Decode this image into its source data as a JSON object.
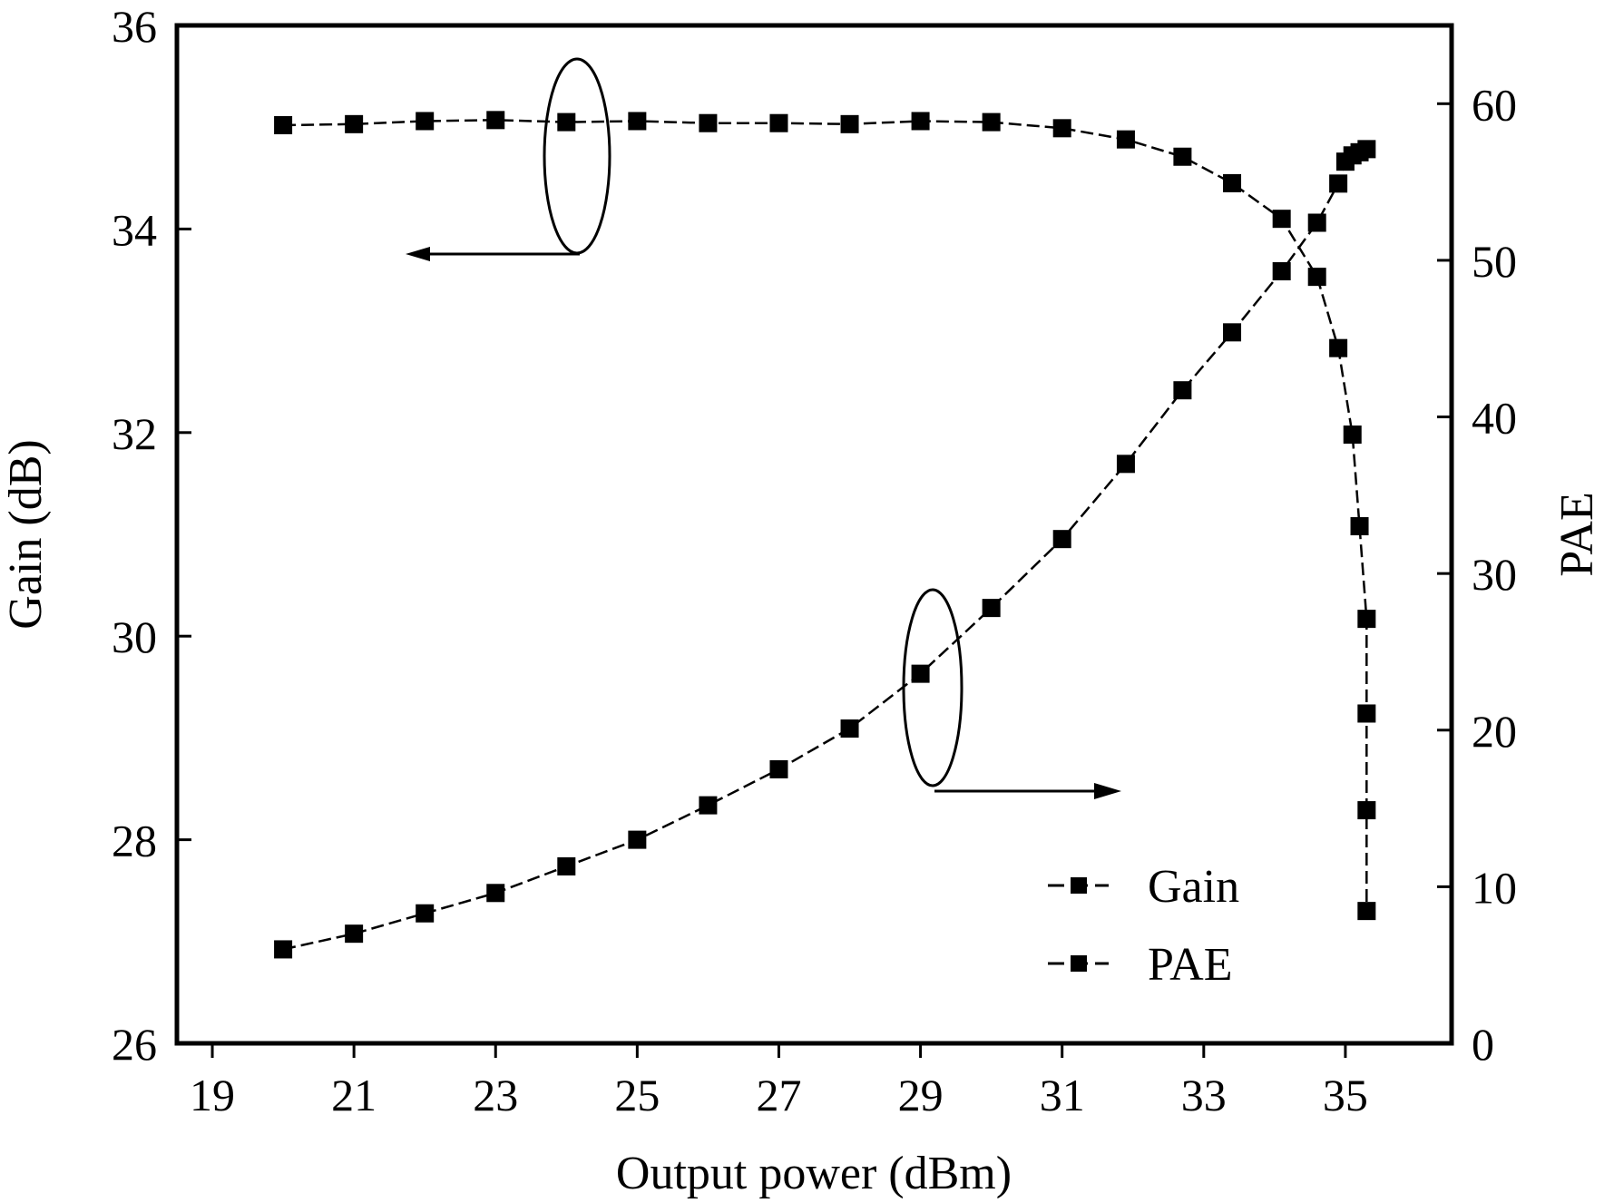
{
  "chart_data": {
    "type": "line",
    "title": "",
    "xlabel": "Output power (dBm)",
    "ylabel": "Gain (dB)",
    "y2label": "PAE",
    "xlim": [
      18.5,
      36.5
    ],
    "ylim": [
      26,
      36
    ],
    "y2lim": [
      0,
      65
    ],
    "xticks": [
      19,
      21,
      23,
      25,
      27,
      29,
      31,
      33,
      35
    ],
    "yticks": [
      26,
      28,
      30,
      32,
      34,
      36
    ],
    "y2ticks": [
      0,
      10,
      20,
      30,
      40,
      50,
      60
    ],
    "grid": false,
    "legend_position": "bottom-right",
    "series": [
      {
        "name": "Gain",
        "axis": "left",
        "color": "#000000",
        "x": [
          20,
          21,
          22,
          23,
          24,
          25,
          26,
          27,
          28,
          29,
          30,
          31,
          31.9,
          32.7,
          33.4,
          34.1,
          34.6,
          34.9,
          35.1,
          35.2,
          35.3,
          35.3,
          35.3,
          35.3
        ],
        "y": [
          35.02,
          35.03,
          35.06,
          35.07,
          35.05,
          35.06,
          35.04,
          35.04,
          35.03,
          35.06,
          35.05,
          34.99,
          34.88,
          34.71,
          34.45,
          34.1,
          33.53,
          32.83,
          31.98,
          31.08,
          30.17,
          29.24,
          28.29,
          27.3
        ]
      },
      {
        "name": "PAE",
        "axis": "right",
        "color": "#000000",
        "x": [
          20,
          21,
          22,
          23,
          24,
          25,
          26,
          27,
          28,
          29,
          30,
          31,
          31.9,
          32.7,
          33.4,
          34.1,
          34.6,
          34.9,
          35.0,
          35.1,
          35.2,
          35.3
        ],
        "y": [
          6,
          7,
          8.3,
          9.6,
          11.3,
          13,
          15.2,
          17.5,
          20.1,
          23.6,
          27.8,
          32.2,
          37,
          41.7,
          45.4,
          49.3,
          52.4,
          54.9,
          56.3,
          56.7,
          56.9,
          57.1
        ]
      }
    ]
  }
}
